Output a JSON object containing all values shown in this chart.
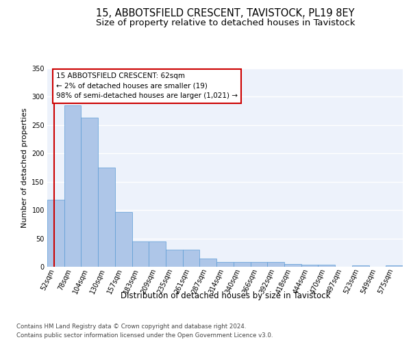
{
  "title": "15, ABBOTSFIELD CRESCENT, TAVISTOCK, PL19 8EY",
  "subtitle": "Size of property relative to detached houses in Tavistock",
  "xlabel": "Distribution of detached houses by size in Tavistock",
  "ylabel": "Number of detached properties",
  "footer_line1": "Contains HM Land Registry data © Crown copyright and database right 2024.",
  "footer_line2": "Contains public sector information licensed under the Open Government Licence v3.0.",
  "bar_labels": [
    "52sqm",
    "78sqm",
    "104sqm",
    "130sqm",
    "157sqm",
    "183sqm",
    "209sqm",
    "235sqm",
    "261sqm",
    "287sqm",
    "314sqm",
    "340sqm",
    "366sqm",
    "392sqm",
    "418sqm",
    "444sqm",
    "470sqm",
    "497sqm",
    "523sqm",
    "549sqm",
    "575sqm"
  ],
  "bar_heights": [
    118,
    285,
    263,
    175,
    96,
    45,
    45,
    30,
    30,
    15,
    8,
    8,
    9,
    9,
    5,
    4,
    4,
    0,
    3,
    0,
    3
  ],
  "bar_color": "#aec6e8",
  "bar_edge_color": "#5b9bd5",
  "annotation_line1": "15 ABBOTSFIELD CRESCENT: 62sqm",
  "annotation_line2": "← 2% of detached houses are smaller (19)",
  "annotation_line3": "98% of semi-detached houses are larger (1,021) →",
  "annotation_box_color": "#ffffff",
  "annotation_box_edge_color": "#cc0000",
  "red_line_color": "#cc0000",
  "ylim": [
    0,
    350
  ],
  "yticks": [
    0,
    50,
    100,
    150,
    200,
    250,
    300,
    350
  ],
  "background_color": "#edf2fb",
  "grid_color": "#ffffff",
  "title_fontsize": 10.5,
  "subtitle_fontsize": 9.5,
  "ylabel_fontsize": 8,
  "xlabel_fontsize": 8.5,
  "tick_fontsize": 7,
  "annotation_fontsize": 7.5,
  "footer_fontsize": 6.2
}
